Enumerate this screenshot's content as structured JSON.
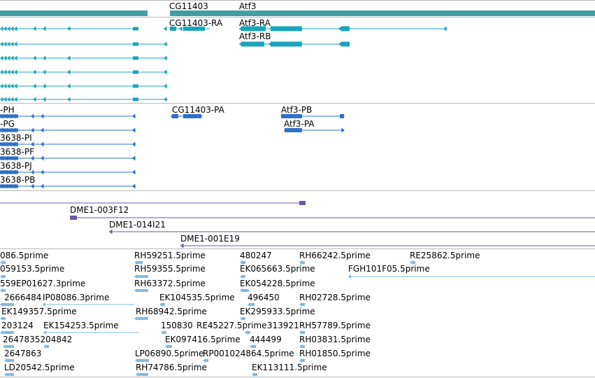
{
  "colors": {
    "gene": "#3f9ea5",
    "mrna": "#1aa5bb",
    "protein": "#2f6fcc",
    "clone": "#6a55a8",
    "est": "#84b9df",
    "separator": "#b8b8b8"
  },
  "tracks": {
    "genes": {
      "labels": [
        {
          "id": "cg11403",
          "text": "CG11403"
        },
        {
          "id": "atf3",
          "text": "Atf3"
        }
      ]
    },
    "transcripts": {
      "labels": [
        {
          "id": "cg11403-ra",
          "text": "CG11403-RA"
        },
        {
          "id": "atf3-ra",
          "text": "Atf3-RA"
        },
        {
          "id": "atf3-rb",
          "text": "Atf3-RB"
        }
      ]
    },
    "proteins": {
      "labels": [
        {
          "id": "ph",
          "text": "-PH"
        },
        {
          "id": "cg11403-pa",
          "text": "CG11403-PA"
        },
        {
          "id": "atf3-pb",
          "text": "Atf3-PB"
        },
        {
          "id": "pg",
          "text": "-PG"
        },
        {
          "id": "atf3-pa",
          "text": "Atf3-PA"
        },
        {
          "id": "pi",
          "text": "3638-PI"
        },
        {
          "id": "pf",
          "text": "3638-PF"
        },
        {
          "id": "pj",
          "text": "3638-PJ"
        },
        {
          "id": "pb",
          "text": "3638-PB"
        }
      ]
    },
    "clones": {
      "labels": [
        {
          "id": "dme1-003f12",
          "text": "DME1-003F12"
        },
        {
          "id": "dme1-014i21",
          "text": "DME1-014I21"
        },
        {
          "id": "dme1-001e19",
          "text": "DME1-001E19"
        }
      ]
    },
    "ests": {
      "labels": [
        {
          "id": "e1",
          "text": "086.5prime"
        },
        {
          "id": "e2",
          "text": "RH59251.5prime"
        },
        {
          "id": "e3",
          "text": "480247"
        },
        {
          "id": "e4",
          "text": "RH66242.5prime"
        },
        {
          "id": "e5",
          "text": "RE25862.5prime"
        },
        {
          "id": "e6",
          "text": "059153.5prime"
        },
        {
          "id": "e7",
          "text": "RH59355.5prime"
        },
        {
          "id": "e8",
          "text": "EK065663.5prime"
        },
        {
          "id": "e9",
          "text": "FGH101F05.5prime"
        },
        {
          "id": "e10",
          "text": "559EP01627.3prime"
        },
        {
          "id": "e11",
          "text": "RH63372.5prime"
        },
        {
          "id": "e12",
          "text": "EK054228.5prime"
        },
        {
          "id": "e13",
          "text": "2666484"
        },
        {
          "id": "e14",
          "text": "IP08086.3prime"
        },
        {
          "id": "e15",
          "text": "EK104535.5prime"
        },
        {
          "id": "e16",
          "text": "496450"
        },
        {
          "id": "e17",
          "text": "RH02728.5prime"
        },
        {
          "id": "e18",
          "text": "EK149357.5prime"
        },
        {
          "id": "e19",
          "text": "RH68942.5prime"
        },
        {
          "id": "e20",
          "text": "EK295933.5prime"
        },
        {
          "id": "e21",
          "text": "203124"
        },
        {
          "id": "e22",
          "text": "EK154253.5prime"
        },
        {
          "id": "e23",
          "text": "150830"
        },
        {
          "id": "e24",
          "text": "RE45227.5prime"
        },
        {
          "id": "e25",
          "text": "313921"
        },
        {
          "id": "e26",
          "text": "RH57789.5prime"
        },
        {
          "id": "e27",
          "text": "2647835204842"
        },
        {
          "id": "e28",
          "text": "EK097416.5prime"
        },
        {
          "id": "e29",
          "text": "444499"
        },
        {
          "id": "e30",
          "text": "RH03831.5prime"
        },
        {
          "id": "e31",
          "text": "2647863"
        },
        {
          "id": "e32",
          "text": "LP06890.5prime"
        },
        {
          "id": "e33",
          "text": "RP001024864.5prime"
        },
        {
          "id": "e34",
          "text": "RH01850.5prime"
        },
        {
          "id": "e35",
          "text": "LD20542.5prime"
        },
        {
          "id": "e36",
          "text": "RH74786.5prime"
        },
        {
          "id": "e37",
          "text": "EK113111.5prime"
        }
      ]
    }
  }
}
